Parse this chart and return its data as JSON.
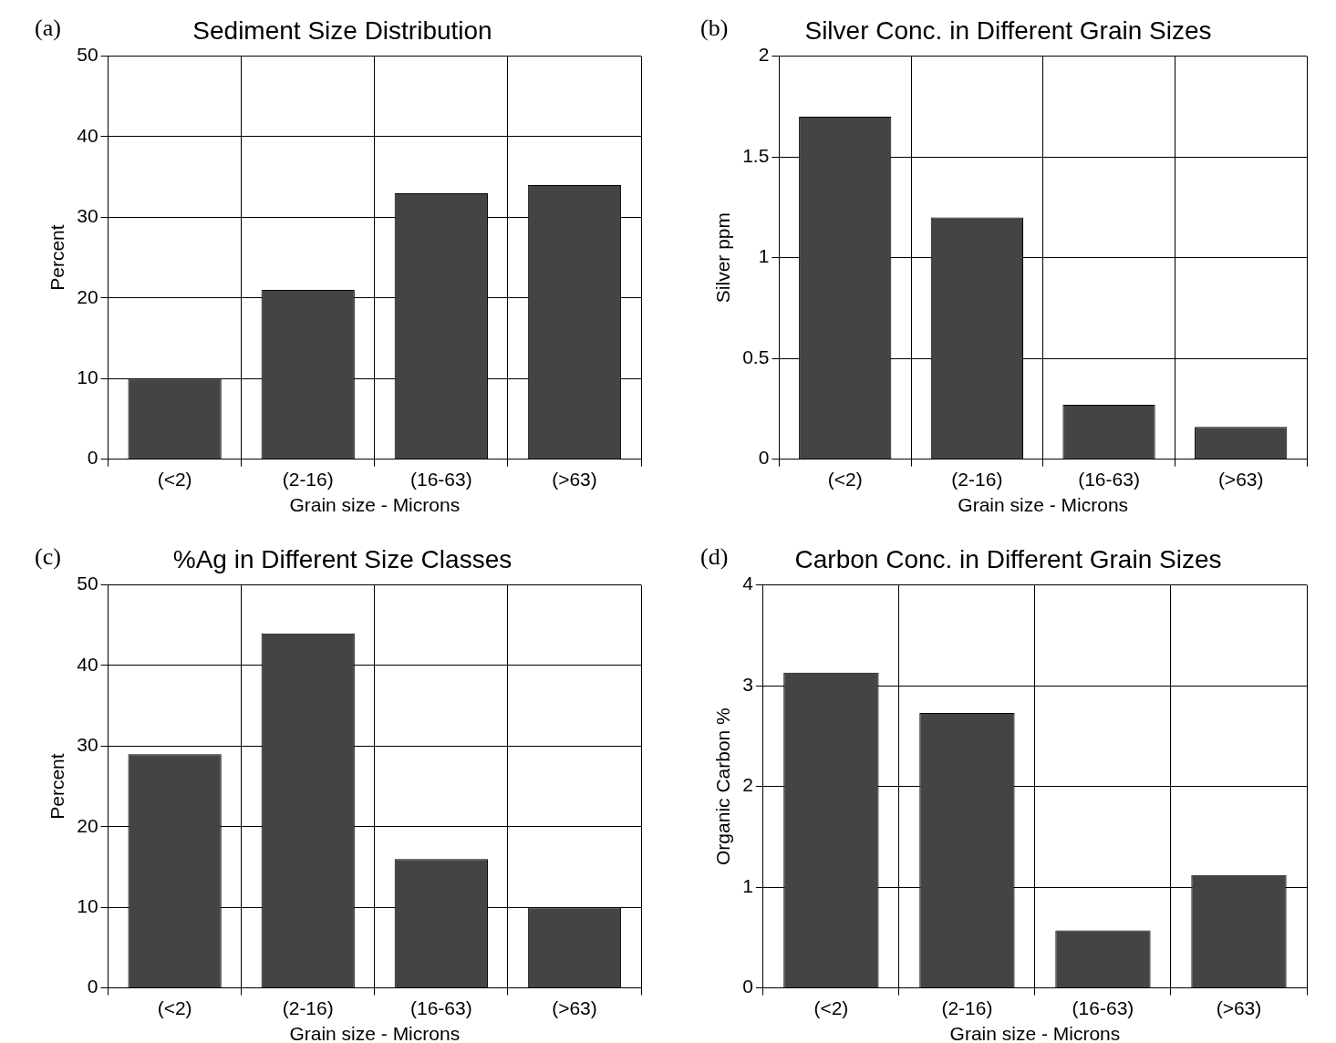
{
  "chart_data": [
    {
      "type": "bar",
      "title": "Sediment Size Distribution",
      "annotations": [
        "(a)"
      ],
      "xlabel": "Grain size - Microns",
      "ylabel": "Percent",
      "categories": [
        "(<2)",
        "(2-16)",
        "(16-63)",
        "(>63)"
      ],
      "values": [
        10,
        21,
        33,
        34
      ],
      "color": "#444444",
      "ylim": [
        0,
        50
      ],
      "yticks": [
        0,
        10,
        20,
        30,
        40,
        50
      ],
      "grid": true,
      "legend": false
    },
    {
      "type": "bar",
      "title": "Silver Conc. in Different Grain Sizes",
      "annotations": [
        "(b)"
      ],
      "xlabel": "Grain size - Microns",
      "ylabel": "Silver ppm",
      "categories": [
        "(<2)",
        "(2-16)",
        "(16-63)",
        "(>63)"
      ],
      "values": [
        1.7,
        1.2,
        0.27,
        0.16
      ],
      "color": "#444444",
      "ylim": [
        0,
        2
      ],
      "yticks": [
        0,
        {
          "value": 0.5,
          "label": "0.5"
        },
        1,
        {
          "value": 1.5,
          "label": "1.5"
        },
        2
      ],
      "grid": true,
      "legend": false
    },
    {
      "type": "bar",
      "title": "%Ag in Different Size Classes",
      "annotations": [
        "(c)"
      ],
      "xlabel": "Grain size - Microns",
      "ylabel": "Percent",
      "categories": [
        "(<2)",
        "(2-16)",
        "(16-63)",
        "(>63)"
      ],
      "values": [
        29,
        44,
        16,
        10
      ],
      "color": "#444444",
      "ylim": [
        0,
        50
      ],
      "yticks": [
        0,
        10,
        20,
        30,
        40,
        50
      ],
      "grid": true,
      "legend": false
    },
    {
      "type": "bar",
      "title": "Carbon Conc. in Different Grain Sizes",
      "annotations": [
        "(d)"
      ],
      "xlabel": "Grain size - Microns",
      "ylabel": "Organic Carbon %",
      "categories": [
        "(<2)",
        "(2-16)",
        "(16-63)",
        "(>63)"
      ],
      "values": [
        3.13,
        2.73,
        0.57,
        1.12
      ],
      "color": "#444444",
      "ylim": [
        0,
        4
      ],
      "yticks": [
        0,
        1,
        2,
        3,
        4
      ],
      "grid": true,
      "legend": false
    }
  ]
}
